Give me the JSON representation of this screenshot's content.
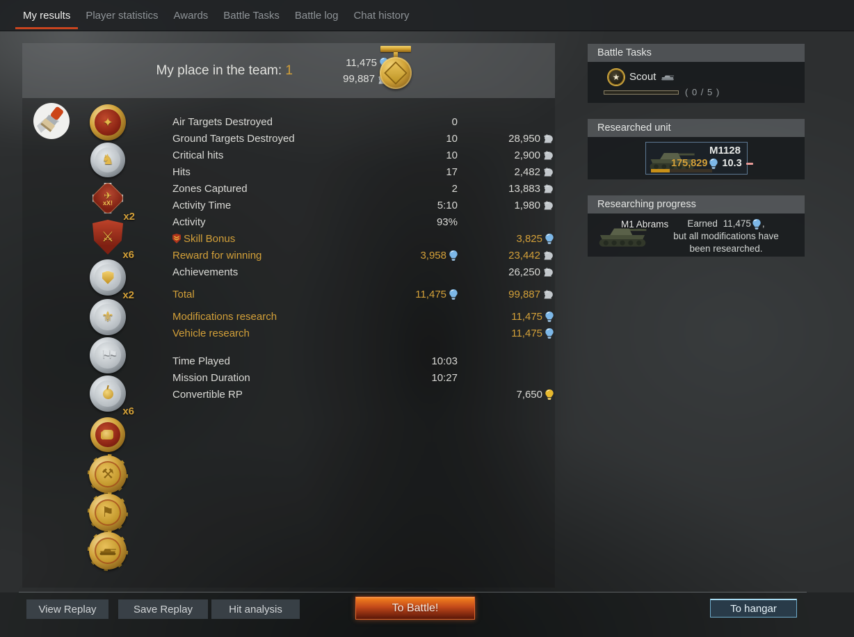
{
  "tabs": {
    "items": [
      {
        "label": "My results",
        "active": true
      },
      {
        "label": "Player statistics",
        "active": false
      },
      {
        "label": "Awards",
        "active": false
      },
      {
        "label": "Battle Tasks",
        "active": false
      },
      {
        "label": "Battle log",
        "active": false
      },
      {
        "label": "Chat history",
        "active": false
      }
    ]
  },
  "header": {
    "title": "My place in the team:",
    "place": "1",
    "rp_total": "11,475",
    "sl_total": "99,887"
  },
  "stats": {
    "groups": [
      {
        "rows": [
          {
            "label": "Air Targets Destroyed",
            "mid": "0"
          },
          {
            "label": "Ground Targets Destroyed",
            "mid": "10",
            "right": "28,950",
            "right_icon": "sl"
          },
          {
            "label": "Critical hits",
            "mid": "10",
            "right": "2,900",
            "right_icon": "sl"
          },
          {
            "label": "Hits",
            "mid": "17",
            "right": "2,482",
            "right_icon": "sl"
          },
          {
            "label": "Zones Captured",
            "mid": "2",
            "right": "13,883",
            "right_icon": "sl"
          },
          {
            "label": "Activity Time",
            "mid": "5:10",
            "right": "1,980",
            "right_icon": "sl"
          },
          {
            "label": "Activity",
            "mid": "93%"
          },
          {
            "label": "Skill Bonus",
            "style": "orange",
            "label_icon": "skill-shield",
            "right": "3,825",
            "right_icon": "rp"
          },
          {
            "label": "Reward for winning",
            "style": "orange",
            "mid": "3,958",
            "mid_icon": "rp",
            "right": "23,442",
            "right_icon": "sl"
          },
          {
            "label": "Achievements",
            "right": "26,250",
            "right_icon": "sl"
          }
        ]
      },
      {
        "rows": [
          {
            "label": "Total",
            "style": "orange",
            "mid": "11,475",
            "mid_icon": "rp",
            "right": "99,887",
            "right_icon": "sl"
          }
        ]
      },
      {
        "rows": [
          {
            "label": "Modifications research",
            "style": "orange",
            "right": "11,475",
            "right_icon": "rp"
          },
          {
            "label": "Vehicle research",
            "style": "orange",
            "right": "11,475",
            "right_icon": "rp"
          }
        ]
      },
      {
        "rows": [
          {
            "label": "Time Played",
            "mid": "10:03"
          },
          {
            "label": "Mission Duration",
            "mid": "10:27"
          },
          {
            "label": "Convertible RP",
            "right": "7,650",
            "right_icon": "rp_gold"
          }
        ]
      }
    ]
  },
  "medals": {
    "decal_icon": "decal-paintbrush-icon",
    "items": [
      {
        "name": "medal-red-wreath-icon",
        "type": "wreath-red"
      },
      {
        "name": "medal-knight-helmet-icon",
        "type": "silver-helmet"
      },
      {
        "name": "badge-red-cross-icon",
        "type": "cross-red",
        "multiplier": "x2"
      },
      {
        "name": "badge-red-shield-swords-icon",
        "type": "shield-red",
        "multiplier": "x6"
      },
      {
        "name": "medal-gold-shield-icon",
        "type": "silver-goldshield",
        "multiplier": "x2"
      },
      {
        "name": "medal-eagle-icon",
        "type": "silver-eagle"
      },
      {
        "name": "medal-flags-icon",
        "type": "silver-flags"
      },
      {
        "name": "medal-apple-icon",
        "type": "silver-apple",
        "multiplier": "x6"
      },
      {
        "name": "medal-fist-icon",
        "type": "red-fist"
      },
      {
        "name": "medal-gold-tools-icon",
        "type": "gold-tools"
      },
      {
        "name": "medal-gold-flag-icon",
        "type": "gold-flag"
      },
      {
        "name": "medal-gold-tank-icon",
        "type": "gold-tank"
      }
    ]
  },
  "sidebar": {
    "battle_tasks": {
      "header": "Battle Tasks",
      "task_name": "Scout",
      "counter": "( 0 / 5 )"
    },
    "researched_unit": {
      "header": "Researched unit",
      "unit_name": "M1128",
      "rp_value": "175,829",
      "battle_rating": "10.3"
    },
    "researching_progress": {
      "header": "Researching progress",
      "unit_name": "M1 Abrams",
      "earned_prefix": "Earned",
      "earned_value": "11,475",
      "earned_suffix": ",",
      "line2": "but all modifications have",
      "line3": "been researched."
    }
  },
  "buttons": {
    "view_replay": "View Replay",
    "save_replay": "Save Replay",
    "hit_analysis": "Hit analysis",
    "to_battle": "To Battle!",
    "to_hangar": "To hangar"
  },
  "colors": {
    "accent_orange": "#d3a039",
    "tab_underline_red": "#c8441f",
    "rp_blue": "#7db8e8",
    "sl_silver": "#c3c8cc",
    "battle_button_orange": "#e06820"
  }
}
